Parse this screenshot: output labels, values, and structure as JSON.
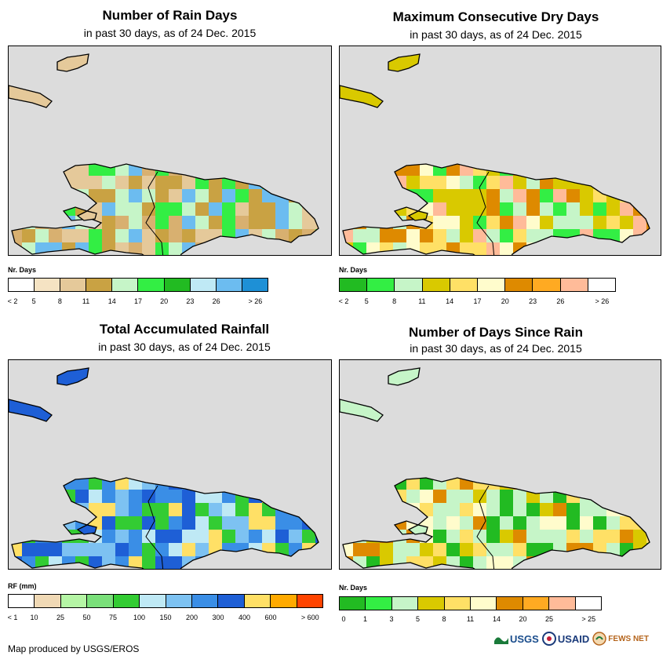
{
  "panels": [
    {
      "title": "Number of Rain Days",
      "subtitle": "in past 30 days, as of 24 Dec. 2015",
      "legend_title": "Nr. Days",
      "legend_colors": [
        "#ffffff",
        "#f5e3c3",
        "#e5c99a",
        "#c9a243",
        "#c6f5c8",
        "#33ee44",
        "#22bb22",
        "#bfe9f5",
        "#6cbcf0",
        "#1e90d6"
      ],
      "legend_labels": [
        "< 2",
        "5",
        "8",
        "11",
        "14",
        "17",
        "20",
        "23",
        "26",
        "> 26"
      ],
      "grid_palette": [
        "#e5c99a",
        "#d8b070",
        "#c9a243",
        "#c6f5c8",
        "#33ee44",
        "#6cbcf0"
      ]
    },
    {
      "title": "Maximum Consecutive Dry Days",
      "subtitle": "in past 30 days, as of 24 Dec. 2015",
      "legend_title": "Nr. Days",
      "legend_colors": [
        "#22bb22",
        "#33ee44",
        "#c6f5c8",
        "#d9c900",
        "#ffe066",
        "#fffccc",
        "#de8a00",
        "#ffaa22",
        "#ffbb99",
        "#ffffff"
      ],
      "legend_labels": [
        "< 2",
        "5",
        "8",
        "11",
        "14",
        "17",
        "20",
        "23",
        "26",
        "> 26"
      ],
      "grid_palette": [
        "#d9c900",
        "#d9c900",
        "#c6f5c8",
        "#ffe066",
        "#33ee44",
        "#de8a00",
        "#fffccc",
        "#ffbb99"
      ]
    },
    {
      "title": "Total Accumulated Rainfall",
      "subtitle": "in past 30 days, as of 24 Dec. 2015",
      "legend_title": "RF (mm)",
      "legend_colors": [
        "#ffffff",
        "#f0d9b5",
        "#b5f5a5",
        "#7ae07a",
        "#33cc33",
        "#bfe9f5",
        "#7dc2f2",
        "#3a8ee6",
        "#1e5fd6",
        "#ffe066",
        "#ffaa00",
        "#ff4400"
      ],
      "legend_labels": [
        "< 1",
        "10",
        "25",
        "50",
        "75",
        "100",
        "150",
        "200",
        "300",
        "400",
        "600",
        "> 600"
      ],
      "grid_palette": [
        "#1e5fd6",
        "#3a8ee6",
        "#3a8ee6",
        "#7dc2f2",
        "#ffe066",
        "#33cc33",
        "#bfe9f5"
      ]
    },
    {
      "title": "Number of Days Since Rain",
      "subtitle": "in past 30 days, as of 24 Dec. 2015",
      "legend_title": "Nr. Days",
      "legend_colors": [
        "#22bb22",
        "#33ee44",
        "#c6f5c8",
        "#d9c900",
        "#ffe066",
        "#fffccc",
        "#de8a00",
        "#ffaa22",
        "#ffbb99",
        "#ffffff"
      ],
      "legend_labels": [
        "0",
        "1",
        "3",
        "5",
        "8",
        "11",
        "14",
        "20",
        "25",
        "> 25"
      ],
      "grid_palette": [
        "#c6f5c8",
        "#c6f5c8",
        "#fffccc",
        "#d9c900",
        "#ffe066",
        "#22bb22",
        "#de8a00"
      ]
    }
  ],
  "credit": "Map produced by USGS/EROS",
  "logos": [
    "USGS",
    "USAID",
    "FEWS NET"
  ]
}
